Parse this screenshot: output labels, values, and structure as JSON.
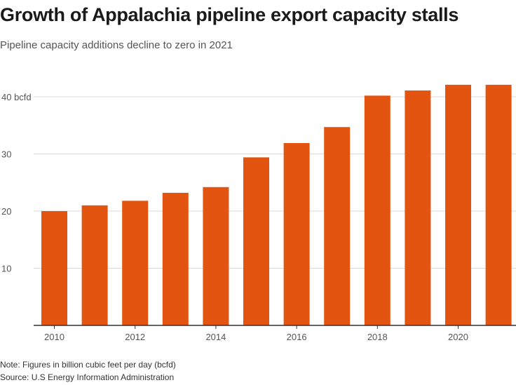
{
  "header": {
    "title": "Growth of Appalachia pipeline export capacity stalls",
    "subtitle": "Pipeline capacity additions decline to zero in 2021"
  },
  "footer": {
    "note": "Note: Figures in billion cubic feet per day (bcfd)",
    "source": "Source: U.S Energy Information Administration"
  },
  "colors": {
    "bar": "#e2540f",
    "grid": "#d9d9d9",
    "axis": "#333333",
    "tick_text": "#555555"
  },
  "chart_data": {
    "type": "bar",
    "title": "Growth of Appalachia pipeline export capacity stalls",
    "subtitle": "Pipeline capacity additions decline to zero in 2021",
    "x": [
      2010,
      2011,
      2012,
      2013,
      2014,
      2015,
      2016,
      2017,
      2018,
      2019,
      2020,
      2021
    ],
    "values": [
      20.0,
      21.0,
      21.8,
      23.2,
      24.2,
      29.4,
      31.9,
      34.7,
      40.2,
      41.1,
      42.1,
      42.1
    ],
    "ylim": [
      0,
      45
    ],
    "y_ticks": [
      10,
      20,
      30,
      40
    ],
    "y_tick_labels": [
      "10",
      "20",
      "30",
      "40 bcfd"
    ],
    "x_ticks": [
      2010,
      2012,
      2014,
      2016,
      2018,
      2020
    ],
    "x_tick_labels": [
      "2010",
      "2012",
      "2014",
      "2016",
      "2018",
      "2020"
    ],
    "xlabel": "",
    "ylabel": "",
    "grid": true,
    "legend": "none"
  }
}
